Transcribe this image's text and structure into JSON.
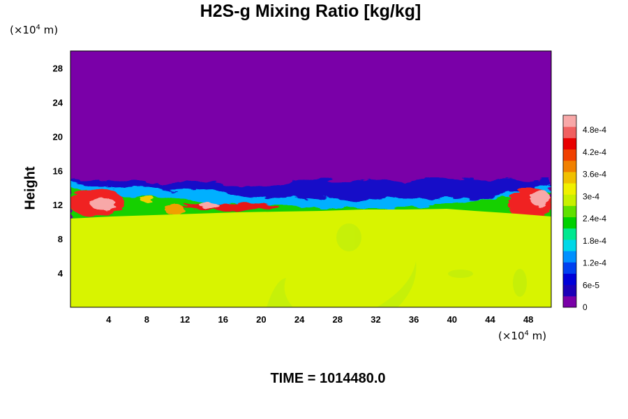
{
  "title": "H2S-g Mixing Ratio [kg/kg]",
  "y_unit_prefix": "(×10",
  "y_unit_exp": "4",
  "y_unit_suffix": " m)",
  "x_unit_prefix": "(×10",
  "x_unit_exp": "4",
  "x_unit_suffix": " m)",
  "time_label": "TIME = 1014480.0",
  "chart_data": {
    "type": "heatmap",
    "title": "H2S-g Mixing Ratio [kg/kg]",
    "xlabel": "",
    "ylabel": "Height",
    "xlim": [
      0,
      50.4
    ],
    "ylim": [
      0,
      30
    ],
    "x_ticks": [
      "4",
      "8",
      "12",
      "16",
      "20",
      "24",
      "28",
      "32",
      "36",
      "40",
      "44",
      "48"
    ],
    "y_ticks": [
      "4",
      "8",
      "12",
      "16",
      "20",
      "24",
      "28"
    ],
    "colorbar": {
      "labels": [
        "0",
        "6e-5",
        "1.2e-4",
        "1.8e-4",
        "2.4e-4",
        "3e-4",
        "3.6e-4",
        "4.2e-4",
        "4.8e-4"
      ],
      "range": [
        0,
        0.00052
      ],
      "colors": [
        "#7a00a8",
        "#1c00b8",
        "#0000d8",
        "#0040f0",
        "#0090ff",
        "#00d8e8",
        "#00e890",
        "#00d000",
        "#60e000",
        "#c8f000",
        "#f0f000",
        "#f0c000",
        "#f08000",
        "#f04000",
        "#e80000",
        "#f06060",
        "#f8a8a8"
      ]
    },
    "regions": [
      {
        "name": "upper layer",
        "y_range": [
          15,
          30
        ],
        "value": 0
      },
      {
        "name": "mixing layer",
        "y_range": [
          10.5,
          15
        ],
        "value_range": [
          0,
          0.00052
        ]
      },
      {
        "name": "lower layer",
        "y_range": [
          0,
          10.5
        ],
        "value": 0.00033
      }
    ]
  }
}
